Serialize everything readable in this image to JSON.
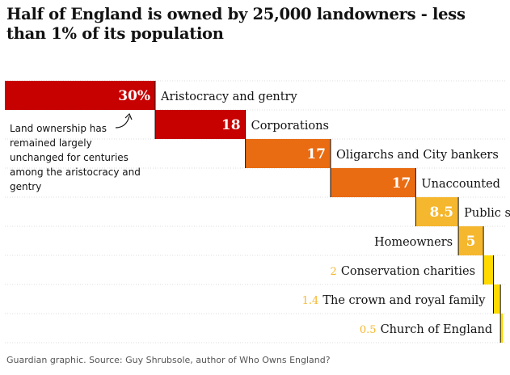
{
  "chart_data": {
    "type": "bar",
    "orientation": "waterfall-horizontal",
    "title": "Half of England is owned by 25,000 landowners - less than 1% of its population",
    "unit": "%",
    "total": 100,
    "categories": [
      "Aristocracy and gentry",
      "Corporations",
      "Oligarchs and City bankers",
      "Unaccounted",
      "Public sector",
      "Homeowners",
      "Conservation charities",
      "The crown and royal family",
      "Church of England"
    ],
    "values": [
      30,
      18,
      17,
      17,
      8.5,
      5,
      2,
      1.4,
      0.5
    ],
    "value_labels": [
      "30%",
      "18",
      "17",
      "17",
      "8.5",
      "5",
      "2",
      "1.4",
      "0.5"
    ],
    "colors": [
      "#c70000",
      "#c70000",
      "#e96c13",
      "#e96c13",
      "#f5b72e",
      "#f5b72e",
      "#ffd900",
      "#ffd900",
      "#ffd900"
    ],
    "annotation": "Land ownership has remained largely unchanged for centuries among the aristocracy and gentry",
    "source": "Guardian graphic. Source: Guy Shrubsole, author of Who Owns England?"
  }
}
